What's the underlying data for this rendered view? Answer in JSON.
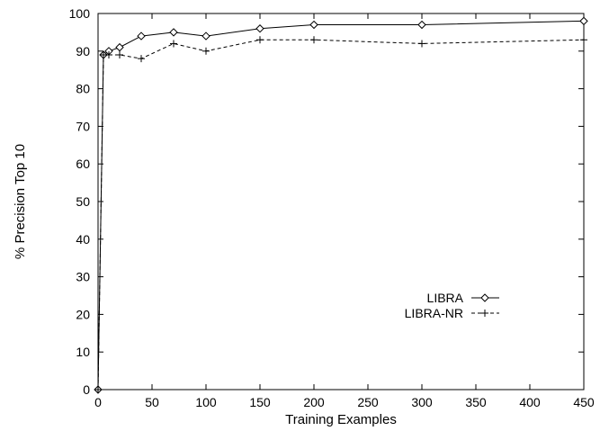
{
  "chart_data": {
    "type": "line",
    "title": "",
    "xlabel": "Training Examples",
    "ylabel": "% Precision Top 10",
    "xlim": [
      0,
      450
    ],
    "ylim": [
      0,
      100
    ],
    "xticks": [
      "0",
      "50",
      "100",
      "150",
      "200",
      "250",
      "300",
      "350",
      "400",
      "450"
    ],
    "yticks": [
      "0",
      "10",
      "20",
      "30",
      "40",
      "50",
      "60",
      "70",
      "80",
      "90",
      "100"
    ],
    "grid": false,
    "legend_position": "right",
    "series": [
      {
        "name": "LIBRA",
        "line_style": "solid",
        "marker": "diamond",
        "x": [
          0,
          5,
          10,
          20,
          40,
          70,
          100,
          150,
          200,
          300,
          450
        ],
        "y": [
          0,
          89,
          90,
          91,
          94,
          95,
          94,
          96,
          97,
          97,
          98
        ]
      },
      {
        "name": "LIBRA-NR",
        "line_style": "dashed",
        "marker": "plus",
        "x": [
          0,
          5,
          10,
          20,
          40,
          70,
          100,
          150,
          200,
          300,
          450
        ],
        "y": [
          0,
          89,
          89,
          89,
          88,
          92,
          90,
          93,
          93,
          92,
          93
        ]
      }
    ]
  }
}
